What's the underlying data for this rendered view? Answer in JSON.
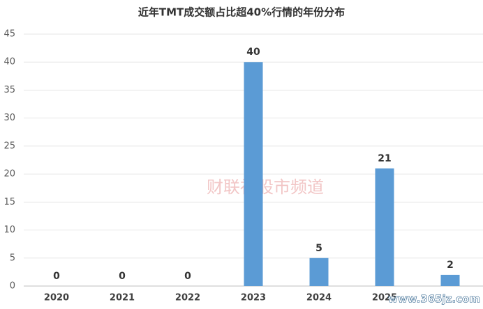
{
  "chart_data": {
    "type": "bar",
    "title": "近年TMT成交额占比超40%行情的年份分布",
    "categories": [
      "2020",
      "2021",
      "2022",
      "2023",
      "2024",
      "2025",
      null
    ],
    "values": [
      0,
      0,
      0,
      40,
      5,
      21,
      2
    ],
    "color": "#5b9bd5",
    "ylim": [
      0,
      45
    ],
    "yticks": [
      0,
      5,
      10,
      15,
      20,
      25,
      30,
      35,
      40,
      45
    ],
    "grid": true,
    "watermarks": [
      "财联社股市频道",
      "www.365jz.com"
    ]
  }
}
